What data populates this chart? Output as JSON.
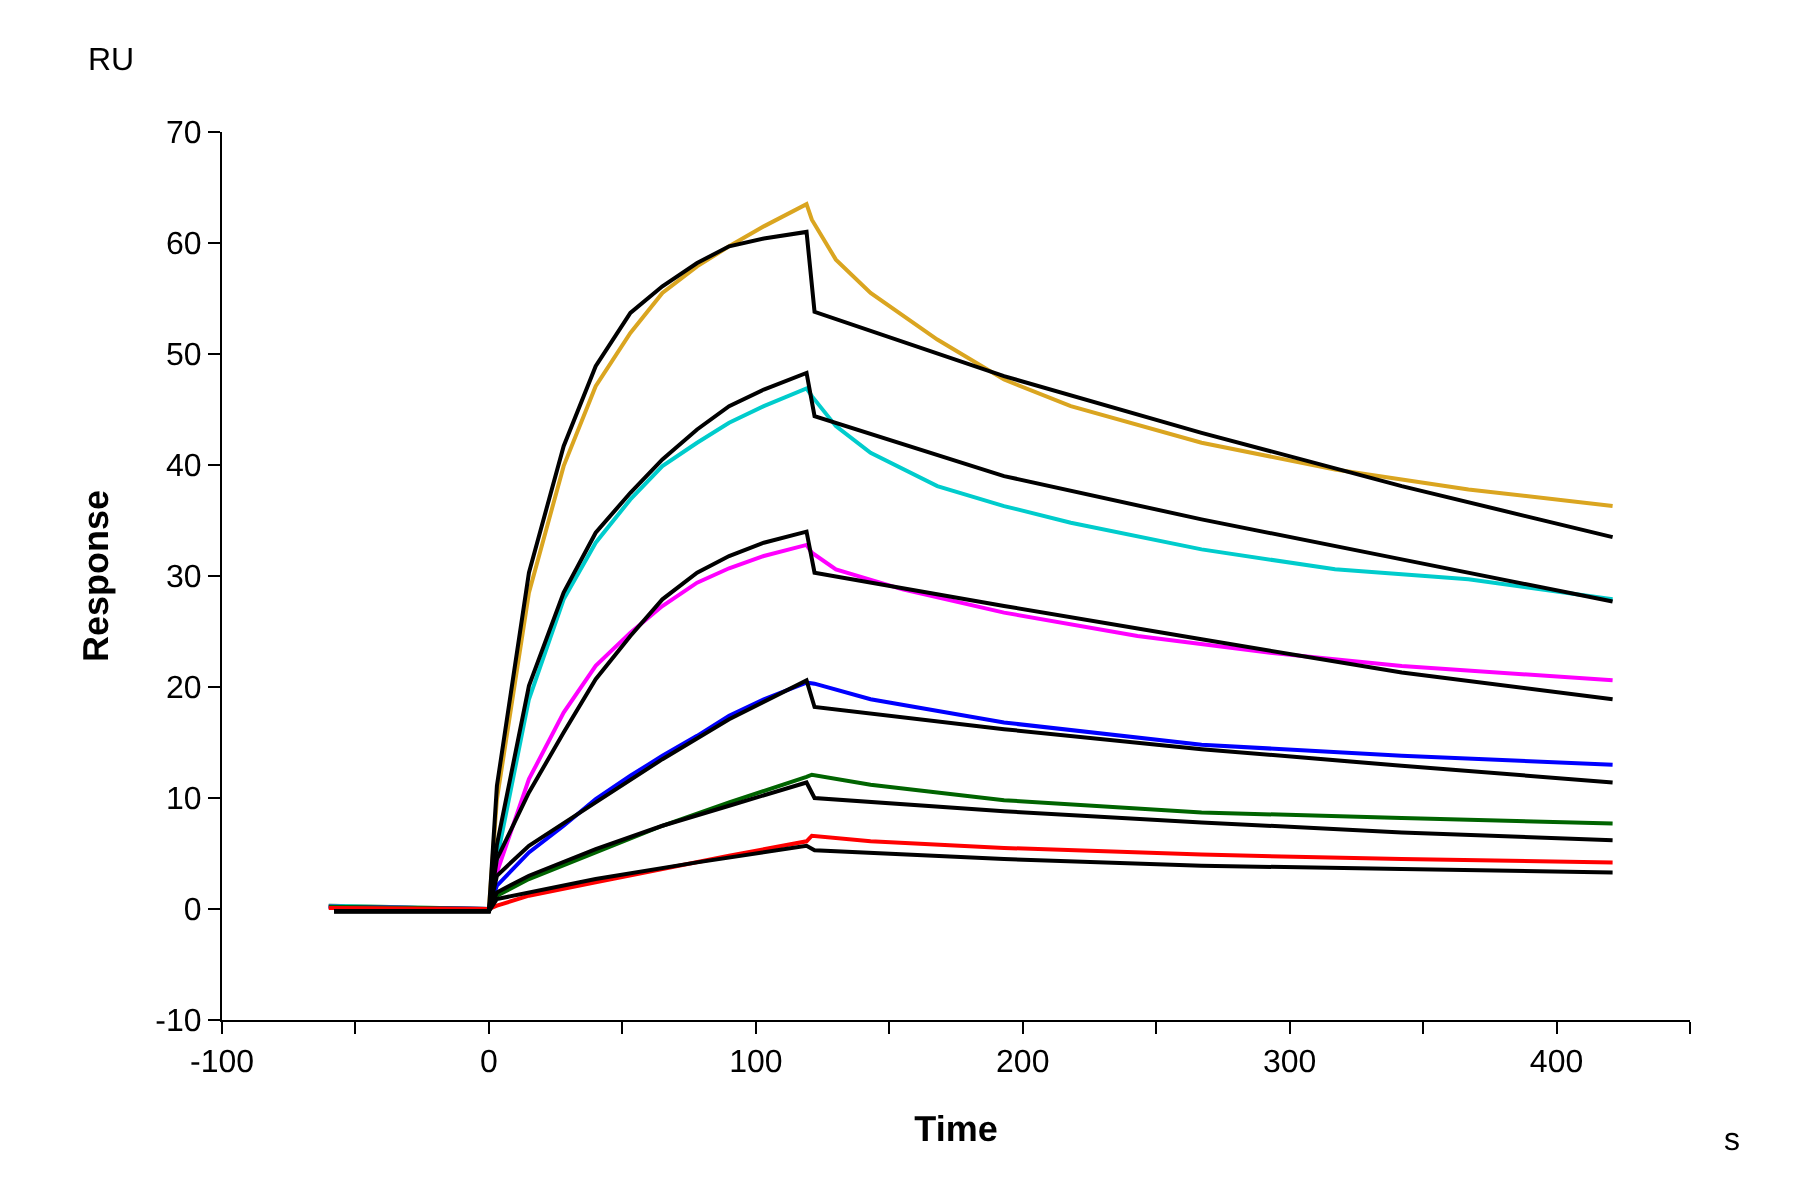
{
  "chart_data": {
    "type": "line",
    "xlabel": "Time",
    "ylabel": "Response",
    "annotations": [
      "RU",
      "s"
    ],
    "xlim": [
      -100,
      450
    ],
    "xticks": [
      -100,
      {
        "value": -50,
        "label": null
      },
      0,
      {
        "value": 50,
        "label": null
      },
      100,
      {
        "value": 150,
        "label": null
      },
      200,
      {
        "value": 250,
        "label": null
      },
      300,
      {
        "value": 350,
        "label": null
      },
      400,
      {
        "value": 450,
        "label": null
      }
    ],
    "ylim": [
      -10,
      70
    ],
    "yticks": [
      -10,
      0,
      10,
      20,
      30,
      40,
      50,
      60,
      70
    ],
    "grid": false,
    "line_style": "solid",
    "series": [
      {
        "color": "#daa520",
        "x": [
          -60,
          0,
          3,
          15,
          28,
          40,
          53,
          65,
          78,
          90,
          103,
          119,
          121,
          130,
          143,
          168,
          193,
          218,
          267,
          317,
          367,
          421
        ],
        "values": [
          0.3,
          0,
          9.9,
          28.5,
          39.9,
          47.1,
          51.9,
          55.5,
          57.9,
          59.7,
          61.5,
          63.5,
          62.1,
          58.5,
          55.5,
          51.3,
          47.7,
          45.3,
          42.0,
          39.6,
          37.8,
          36.3
        ]
      },
      {
        "color": "#00cccc",
        "x": [
          -60,
          0,
          3,
          15,
          28,
          40,
          53,
          65,
          78,
          90,
          103,
          119,
          121,
          130,
          143,
          168,
          193,
          218,
          267,
          317,
          367,
          421
        ],
        "values": [
          0.3,
          0,
          4.5,
          18.9,
          27.9,
          33.0,
          36.9,
          39.9,
          42.0,
          43.8,
          45.3,
          46.9,
          46.2,
          43.5,
          41.1,
          38.1,
          36.3,
          34.8,
          32.4,
          30.6,
          29.7,
          27.9
        ]
      },
      {
        "color": "#ff00ff",
        "x": [
          -60,
          0,
          3,
          15,
          28,
          40,
          53,
          65,
          78,
          90,
          103,
          119,
          121,
          130,
          155,
          193,
          243,
          292,
          342,
          421
        ],
        "values": [
          0.2,
          0,
          3.3,
          11.7,
          17.7,
          21.9,
          24.9,
          27.3,
          29.4,
          30.7,
          31.8,
          32.8,
          32.1,
          30.6,
          28.8,
          26.7,
          24.6,
          23.1,
          21.9,
          20.6
        ]
      },
      {
        "color": "#0000ff",
        "x": [
          -60,
          0,
          3,
          15,
          28,
          40,
          53,
          65,
          78,
          90,
          103,
          119,
          122,
          143,
          193,
          267,
          342,
          421
        ],
        "values": [
          0.2,
          0,
          2.1,
          5.1,
          7.5,
          9.9,
          12.0,
          13.8,
          15.6,
          17.4,
          18.9,
          20.4,
          20.3,
          18.9,
          16.8,
          14.8,
          13.8,
          13.0
        ]
      },
      {
        "color": "#006400",
        "x": [
          -60,
          0,
          3,
          15,
          40,
          65,
          90,
          119,
          121,
          143,
          193,
          267,
          342,
          421
        ],
        "values": [
          0.2,
          0,
          1.2,
          2.7,
          5.1,
          7.5,
          9.6,
          11.9,
          12.1,
          11.2,
          9.8,
          8.7,
          8.2,
          7.7
        ]
      },
      {
        "color": "#ff0000",
        "x": [
          -60,
          0,
          3,
          15,
          40,
          65,
          90,
          119,
          121,
          143,
          193,
          267,
          342,
          421
        ],
        "values": [
          0.1,
          0,
          0.3,
          1.2,
          2.4,
          3.6,
          4.8,
          6.1,
          6.6,
          6.1,
          5.5,
          4.9,
          4.5,
          4.2
        ]
      },
      {
        "color": "#000000",
        "x": [
          -58,
          0,
          3,
          15,
          28,
          40,
          53,
          65,
          78,
          90,
          103,
          119,
          122,
          193,
          267,
          342,
          421
        ],
        "values": [
          -0.2,
          -0.2,
          11.1,
          30.3,
          41.7,
          48.9,
          53.7,
          56.1,
          58.2,
          59.7,
          60.4,
          61.0,
          53.8,
          48.0,
          42.9,
          38.1,
          33.5
        ]
      },
      {
        "color": "#000000",
        "x": [
          -58,
          0,
          3,
          15,
          28,
          40,
          53,
          65,
          78,
          90,
          103,
          119,
          122,
          193,
          267,
          342,
          421
        ],
        "values": [
          -0.2,
          -0.2,
          5.8,
          20.1,
          28.5,
          33.9,
          37.5,
          40.5,
          43.2,
          45.3,
          46.8,
          48.3,
          44.4,
          39.0,
          35.1,
          31.5,
          27.7
        ]
      },
      {
        "color": "#000000",
        "x": [
          -58,
          0,
          3,
          15,
          28,
          40,
          53,
          65,
          78,
          90,
          103,
          119,
          122,
          193,
          267,
          342,
          421
        ],
        "values": [
          -0.2,
          -0.2,
          4.5,
          10.5,
          15.9,
          20.7,
          24.6,
          27.9,
          30.3,
          31.8,
          33.0,
          34.0,
          30.3,
          27.3,
          24.3,
          21.3,
          18.9
        ]
      },
      {
        "color": "#000000",
        "x": [
          -58,
          0,
          3,
          15,
          40,
          65,
          90,
          119,
          122,
          193,
          267,
          342,
          421
        ],
        "values": [
          -0.2,
          -0.2,
          3.0,
          5.7,
          9.6,
          13.5,
          17.1,
          20.6,
          18.2,
          16.2,
          14.4,
          12.9,
          11.4
        ]
      },
      {
        "color": "#000000",
        "x": [
          -58,
          0,
          3,
          15,
          40,
          65,
          90,
          119,
          122,
          193,
          267,
          342,
          421
        ],
        "values": [
          -0.2,
          -0.2,
          1.5,
          3.0,
          5.4,
          7.5,
          9.3,
          11.4,
          10.0,
          8.8,
          7.8,
          6.9,
          6.2
        ]
      },
      {
        "color": "#000000",
        "x": [
          -58,
          0,
          3,
          40,
          78,
          119,
          122,
          193,
          267,
          342,
          421
        ],
        "values": [
          -0.2,
          -0.2,
          0.9,
          2.7,
          4.2,
          5.7,
          5.3,
          4.5,
          3.9,
          3.6,
          3.3
        ]
      }
    ]
  }
}
